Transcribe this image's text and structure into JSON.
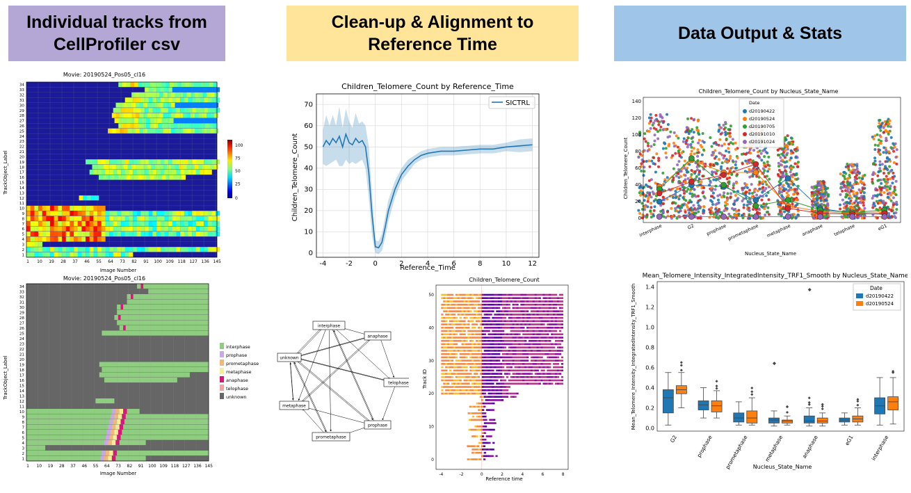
{
  "headers": {
    "col1": [
      "Individual tracks from",
      "CellProfiler csv"
    ],
    "col2": [
      "Clean-up & Alignment to",
      "Reference Time"
    ],
    "col3": [
      "Data Output & Stats"
    ]
  },
  "heatmap1": {
    "title": "Movie: 20190524_Pos05_cl16",
    "xlabel": "Image Number",
    "ylabel": "TrackObject_Label",
    "xticks": [
      "1",
      "10",
      "19",
      "28",
      "37",
      "46",
      "55",
      "64",
      "73",
      "82",
      "91",
      "100",
      "109",
      "118",
      "127",
      "136",
      "145"
    ],
    "yticks": [
      "1",
      "2",
      "3",
      "4",
      "5",
      "6",
      "7",
      "8",
      "9",
      "10",
      "11",
      "12",
      "13",
      "14",
      "15",
      "16",
      "17",
      "18",
      "19",
      "20",
      "21",
      "22",
      "23",
      "24",
      "25",
      "26",
      "27",
      "28",
      "29",
      "30",
      "31",
      "32",
      "33",
      "34"
    ],
    "colorbar_ticks": [
      "0",
      "25",
      "50",
      "75",
      "100"
    ]
  },
  "heatmap2": {
    "title": "Movie: 20190524_Pos05_cl16",
    "xlabel": "Image Number",
    "ylabel": "TrackObject_Label",
    "xticks": [
      "1",
      "10",
      "19",
      "28",
      "37",
      "46",
      "55",
      "64",
      "73",
      "82",
      "91",
      "100",
      "109",
      "118",
      "127",
      "136",
      "145"
    ],
    "yticks": [
      "1",
      "2",
      "3",
      "4",
      "5",
      "6",
      "7",
      "8",
      "9",
      "10",
      "11",
      "12",
      "13",
      "14",
      "15",
      "16",
      "17",
      "18",
      "19",
      "20",
      "21",
      "22",
      "23",
      "24",
      "25",
      "26",
      "27",
      "28",
      "29",
      "30",
      "31",
      "32",
      "33",
      "34"
    ],
    "legend": [
      {
        "label": "interphase",
        "color": "#8fce80"
      },
      {
        "label": "prophase",
        "color": "#c9a8e6"
      },
      {
        "label": "prometaphase",
        "color": "#f0b87a"
      },
      {
        "label": "metaphase",
        "color": "#f1ef9a"
      },
      {
        "label": "anaphase",
        "color": "#d6187a"
      },
      {
        "label": "telophase",
        "color": "#f3a3a3"
      },
      {
        "label": "unknown",
        "color": "#666666"
      }
    ]
  },
  "chart_data": [
    {
      "type": "line",
      "title": "Children_Telomere_Count by Reference_Time",
      "xlabel": "Reference_Time",
      "ylabel": "Children_Telomere_Count",
      "xlim": [
        -4.5,
        12.5
      ],
      "ylim": [
        -2,
        75
      ],
      "xticks": [
        "-4",
        "-2",
        "0",
        "2",
        "4",
        "6",
        "8",
        "10",
        "12"
      ],
      "yticks": [
        "0",
        "10",
        "20",
        "30",
        "40",
        "50",
        "60",
        "70"
      ],
      "series": [
        {
          "name": "SICTRL",
          "color": "#1f77b4"
        }
      ],
      "x": [
        -4,
        -3.75,
        -3.5,
        -3.25,
        -3,
        -2.75,
        -2.5,
        -2.25,
        -2,
        -1.75,
        -1.5,
        -1.25,
        -1,
        -0.75,
        -0.5,
        -0.25,
        0,
        0.25,
        0.5,
        0.75,
        1,
        1.5,
        2,
        2.5,
        3,
        3.5,
        4,
        5,
        6,
        7,
        8,
        9,
        10,
        11,
        12
      ],
      "y": [
        50,
        53,
        51,
        54,
        52,
        55,
        50,
        56,
        52,
        51,
        54,
        52,
        53,
        50,
        38,
        18,
        3,
        2.5,
        5,
        12,
        20,
        30,
        37,
        41,
        44,
        46,
        47,
        48,
        48,
        48.5,
        49,
        49,
        50,
        50.5,
        51
      ],
      "band": [
        8,
        12,
        9,
        11,
        8,
        14,
        9,
        12,
        10,
        8,
        12,
        9,
        9,
        10,
        12,
        10,
        3,
        3,
        4,
        5,
        5,
        4,
        3,
        3,
        2,
        2,
        2,
        2,
        2,
        2,
        2,
        2,
        2,
        3,
        3
      ]
    },
    {
      "type": "scatter",
      "title": "Children_Telomere_Count",
      "xlabel": "Reference time",
      "ylabel": "Track ID",
      "xlim": [
        -4.5,
        8.5
      ],
      "ylim": [
        -3,
        53
      ],
      "xticks": [
        "-4",
        "-2",
        "0",
        "2",
        "4",
        "6",
        "8"
      ],
      "yticks": [
        "0",
        "10",
        "20",
        "30",
        "40",
        "50"
      ]
    },
    {
      "type": "scatter",
      "title": "Children_Telomere_Count by Nucleus_State_Name",
      "xlabel": "Nucleus_State_Name",
      "ylabel": "Children_Telomere_Count",
      "categories": [
        "interphase",
        "G2",
        "prophase",
        "prometaphase",
        "metaphase",
        "anaphase",
        "telophase",
        "eG1"
      ],
      "ylim": [
        -5,
        145
      ],
      "yticks": [
        "0",
        "20",
        "40",
        "60",
        "80",
        "100",
        "120",
        "140"
      ],
      "legend_title": "Date",
      "series": [
        {
          "name": "d20190422",
          "color": "#1f77b4",
          "means": [
            20,
            40,
            38,
            22,
            48,
            12,
            6,
            5
          ]
        },
        {
          "name": "d20190524",
          "color": "#ff7f0e",
          "means": [
            38,
            70,
            55,
            55,
            15,
            8,
            6,
            8
          ]
        },
        {
          "name": "d20190705",
          "color": "#2ca02c",
          "means": [
            35,
            72,
            40,
            15,
            22,
            10,
            7,
            10
          ]
        },
        {
          "name": "d20191010",
          "color": "#d62728",
          "means": [
            30,
            44,
            52,
            65,
            12,
            6,
            5,
            6
          ]
        },
        {
          "name": "d20191024",
          "color": "#9467bd",
          "means": [
            2,
            2,
            2,
            2,
            2,
            2,
            2,
            2
          ]
        }
      ]
    },
    {
      "type": "box",
      "title": "Mean_Telomere_Intensity_IntegratedIntensity_TRF1_Smooth by Nucleus_State_Name",
      "xlabel": "Nucleus_State_Name",
      "ylabel": "Mean_Telomere_Intensity_IntegratedIntensity_TRF1_Smooth",
      "categories": [
        "G2",
        "prophase",
        "prometaphase",
        "metaphase",
        "anaphase",
        "eG1",
        "interphase"
      ],
      "ylim": [
        -0.03,
        1.45
      ],
      "yticks": [
        "0.0",
        "0.2",
        "0.4",
        "0.6",
        "0.8",
        "1.0",
        "1.2",
        "1.4"
      ],
      "legend_title": "Date",
      "series": [
        {
          "name": "d20190422",
          "color": "#1f77b4",
          "boxes": [
            [
              0.03,
              0.15,
              0.3,
              0.38,
              0.55
            ],
            [
              0.1,
              0.18,
              0.23,
              0.27,
              0.4
            ],
            [
              0.03,
              0.06,
              0.1,
              0.15,
              0.26
            ],
            [
              0.02,
              0.05,
              0.08,
              0.1,
              0.17
            ],
            [
              0.02,
              0.05,
              0.07,
              0.12,
              0.2
            ],
            [
              0.03,
              0.06,
              0.08,
              0.1,
              0.15
            ],
            [
              0.03,
              0.14,
              0.22,
              0.3,
              0.5
            ]
          ]
        },
        {
          "name": "d20190524",
          "color": "#ff7f0e",
          "boxes": [
            [
              0.2,
              0.34,
              0.38,
              0.42,
              0.55
            ],
            [
              0.1,
              0.16,
              0.22,
              0.27,
              0.37
            ],
            [
              0.03,
              0.05,
              0.1,
              0.17,
              0.3
            ],
            [
              0.03,
              0.05,
              0.07,
              0.08,
              0.12
            ],
            [
              0.02,
              0.05,
              0.07,
              0.1,
              0.15
            ],
            [
              0.03,
              0.06,
              0.09,
              0.12,
              0.2
            ],
            [
              0.04,
              0.18,
              0.26,
              0.31,
              0.5
            ]
          ]
        }
      ]
    }
  ],
  "state_graph": {
    "nodes": [
      {
        "id": "interphase",
        "label": "interphase"
      },
      {
        "id": "anaphase",
        "label": "anaphase"
      },
      {
        "id": "unknown",
        "label": "unknown"
      },
      {
        "id": "telophase",
        "label": "telophase"
      },
      {
        "id": "metaphase",
        "label": "metaphase"
      },
      {
        "id": "prophase",
        "label": "prophase"
      },
      {
        "id": "prometaphase",
        "label": "prometaphase"
      }
    ]
  }
}
